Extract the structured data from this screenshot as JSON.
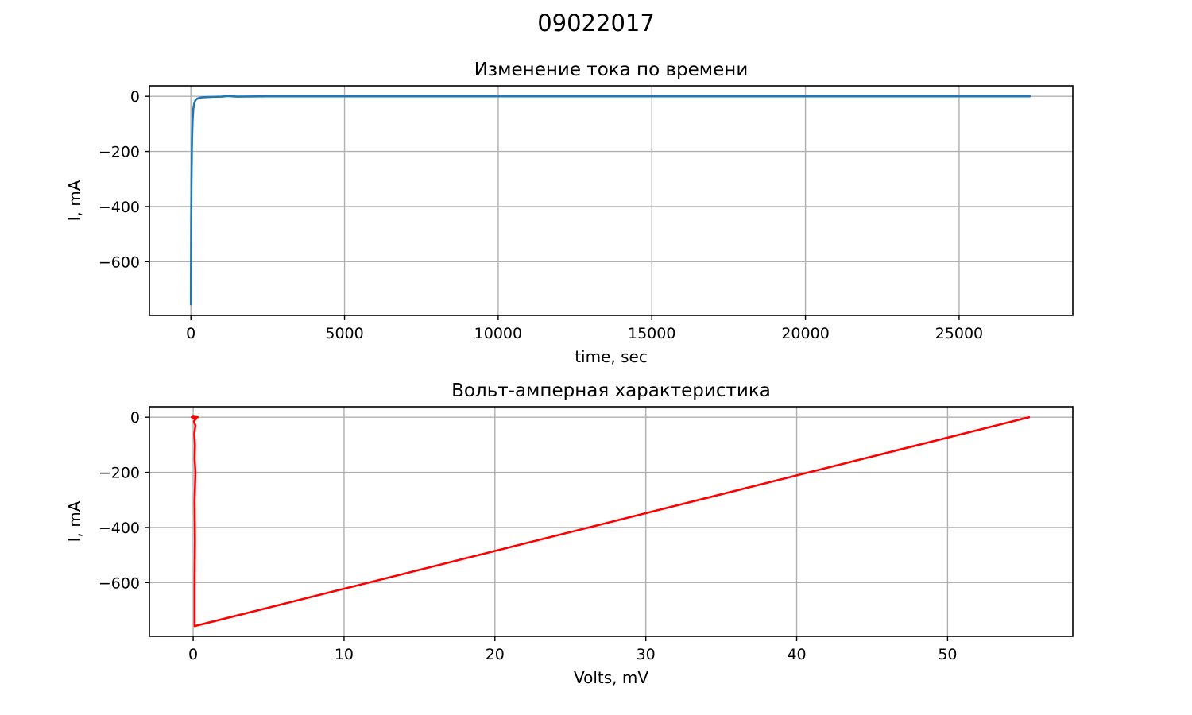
{
  "figure": {
    "suptitle": "09022017"
  },
  "colors": {
    "series_top": "#1f77b4",
    "series_bottom": "#ff0000",
    "grid": "#b0b0b0",
    "axes": "#000000",
    "background": "#ffffff"
  },
  "chart_data": [
    {
      "type": "line",
      "title": "Изменение тока по времени",
      "xlabel": "time, sec",
      "ylabel": "I, mA",
      "xlim": [
        -1350,
        28700
      ],
      "ylim": [
        -795,
        38
      ],
      "xticks": [
        0,
        5000,
        10000,
        15000,
        20000,
        25000
      ],
      "xtick_labels": [
        "0",
        "5000",
        "10000",
        "15000",
        "20000",
        "25000"
      ],
      "yticks": [
        0,
        -200,
        -400,
        -600
      ],
      "ytick_labels": [
        "0",
        "−200",
        "−400",
        "−600"
      ],
      "grid": true,
      "legend": "none",
      "series": [
        {
          "color": "#1f77b4",
          "x": [
            0,
            5,
            10,
            20,
            35,
            55,
            80,
            110,
            150,
            200,
            260,
            350,
            500,
            700,
            1000,
            1200,
            1500,
            2500,
            5000,
            8000,
            10000,
            12000,
            15000,
            18000,
            20000,
            22000,
            25000,
            27300
          ],
          "y": [
            -755,
            -600,
            -450,
            -300,
            -170,
            -90,
            -45,
            -25,
            -14,
            -9,
            -6,
            -4,
            -3,
            -2,
            -1,
            1,
            -1,
            0,
            0,
            0,
            0,
            0,
            0,
            0,
            0,
            0,
            0,
            0
          ]
        }
      ]
    },
    {
      "type": "line",
      "title": "Вольт-амперная характеристика",
      "xlabel": "Volts, mV",
      "ylabel": "I, mA",
      "xlim": [
        -2.9,
        58.3
      ],
      "ylim": [
        -795,
        38
      ],
      "xticks": [
        0,
        10,
        20,
        30,
        40,
        50
      ],
      "xtick_labels": [
        "0",
        "10",
        "20",
        "30",
        "40",
        "50"
      ],
      "yticks": [
        0,
        -200,
        -400,
        -600
      ],
      "ytick_labels": [
        "0",
        "−200",
        "−400",
        "−600"
      ],
      "grid": true,
      "legend": "none",
      "series": [
        {
          "color": "#ff0000",
          "x": [
            55.4,
            0.1,
            0.1,
            0.12,
            0.1,
            0.15,
            0.1,
            0.12,
            0.08,
            0.15,
            0.05,
            0.2,
            -0.1,
            0.3,
            0.0,
            0.2
          ],
          "y": [
            0,
            -758,
            -600,
            -450,
            -300,
            -200,
            -150,
            -100,
            -60,
            -30,
            -15,
            -5,
            0,
            0,
            2,
            0
          ]
        }
      ]
    }
  ]
}
